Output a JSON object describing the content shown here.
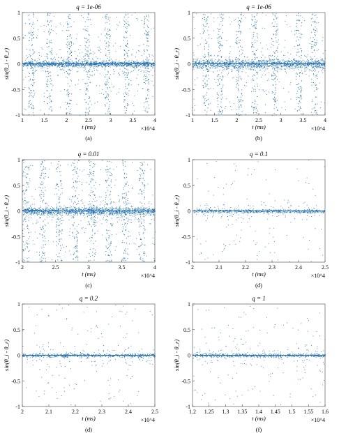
{
  "chart_data": [
    {
      "type": "scatter",
      "panel": "(a)",
      "title": "q = 1e-06",
      "xlabel": "t (ms)",
      "ylabel": "sin(θ_i - θ_r)",
      "x_multiplier": "×10^4",
      "xlim": [
        1,
        4
      ],
      "ylim": [
        -1,
        1
      ],
      "xticks": [
        1,
        1.5,
        2,
        2.5,
        3,
        3.5,
        4
      ],
      "xtick_labels": [
        "1",
        "1.5",
        "2",
        "2.5",
        "3",
        "3.5",
        "4"
      ],
      "yticks": [
        -1,
        -0.5,
        0,
        0.5,
        1
      ],
      "ytick_labels": [
        "-1",
        "-0.5",
        "0",
        "0.5",
        "1"
      ],
      "series": [
        {
          "color": "#1f6fb4"
        }
      ],
      "pattern": {
        "band": 0.08,
        "burst_x": [
          1.2,
          1.6,
          2.05,
          2.47,
          2.92,
          3.35,
          3.8
        ],
        "burst_width": 0.12
      }
    },
    {
      "type": "scatter",
      "panel": "(b)",
      "title": "q = 1e-06",
      "xlabel": "t (ms)",
      "ylabel": "sin(θ_i - θ_r)",
      "x_multiplier": "×10^4",
      "xlim": [
        1,
        4
      ],
      "ylim": [
        -1,
        1
      ],
      "xticks": [
        1,
        1.5,
        2,
        2.5,
        3,
        3.5,
        4
      ],
      "xtick_labels": [
        "1",
        "1.5",
        "2",
        "2.5",
        "3",
        "3.5",
        "4"
      ],
      "yticks": [
        -1,
        -0.5,
        0,
        0.5,
        1
      ],
      "ytick_labels": [
        "-1",
        "-0.5",
        "0",
        "0.5",
        "1"
      ],
      "series": [
        {
          "color": "#1f6fb4"
        }
      ],
      "pattern": {
        "band": 0.12,
        "burst_x": [
          1.3,
          1.62,
          2.05,
          2.4,
          2.85,
          3.4,
          3.75
        ],
        "burst_width": 0.14
      }
    },
    {
      "type": "scatter",
      "panel": "(c)",
      "title": "q = 0.01",
      "xlabel": "t (ms)",
      "ylabel": "sin(θ_i - θ_r)",
      "x_multiplier": "×10^4",
      "xlim": [
        2,
        4
      ],
      "ylim": [
        -1,
        1
      ],
      "xticks": [
        2,
        2.5,
        3,
        3.5,
        4
      ],
      "xtick_labels": [
        "2",
        "2.5",
        "3",
        "3.5",
        "4"
      ],
      "yticks": [
        -1,
        -0.5,
        0,
        0.5,
        1
      ],
      "ytick_labels": [
        "-1",
        "-0.5",
        "0",
        "0.5",
        "1"
      ],
      "series": [
        {
          "color": "#1f6fb4"
        }
      ],
      "pattern": {
        "band": 0.1,
        "burst_x": [
          2.05,
          2.3,
          2.55,
          2.8,
          3.05,
          3.3,
          3.55,
          3.8
        ],
        "burst_width": 0.1
      }
    },
    {
      "type": "scatter",
      "panel": "(d)",
      "title": "q = 0.1",
      "xlabel": "t (ms)",
      "ylabel": "sin(θ_i - θ_r)",
      "x_multiplier": "×10^4",
      "xlim": [
        2,
        2.5
      ],
      "ylim": [
        -1,
        1
      ],
      "xticks": [
        2,
        2.1,
        2.2,
        2.3,
        2.4,
        2.5
      ],
      "xtick_labels": [
        "2",
        "2.1",
        "2.2",
        "2.3",
        "2.4",
        "2.5"
      ],
      "yticks": [
        -1,
        -0.5,
        0,
        0.5,
        1
      ],
      "ytick_labels": [
        "-1",
        "-0.5",
        "0",
        "0.5",
        "1"
      ],
      "series": [
        {
          "color": "#1f6fb4"
        }
      ],
      "pattern": {
        "band": 0.05,
        "burst_x": [],
        "burst_width": 0
      }
    },
    {
      "type": "scatter",
      "panel": "(d)",
      "title": "q = 0.2",
      "xlabel": "t (ms)",
      "ylabel": "sin(θ_i - θ_r)",
      "x_multiplier": "×10^4",
      "xlim": [
        2,
        2.5
      ],
      "ylim": [
        -1,
        1
      ],
      "xticks": [
        2,
        2.1,
        2.2,
        2.3,
        2.4,
        2.5
      ],
      "xtick_labels": [
        "2",
        "2.1",
        "2.2",
        "2.3",
        "2.4",
        "2.5"
      ],
      "yticks": [
        -1,
        -0.5,
        0,
        0.5,
        1
      ],
      "ytick_labels": [
        "-1",
        "-0.5",
        "0",
        "0.5",
        "1"
      ],
      "series": [
        {
          "color": "#1f6fb4"
        }
      ],
      "pattern": {
        "band": 0.05,
        "burst_x": [],
        "burst_width": 0
      }
    },
    {
      "type": "scatter",
      "panel": "(f)",
      "title": "q = 1",
      "xlabel": "t (ms)",
      "ylabel": "sin(θ_i - θ_r)",
      "x_multiplier": "×10^4",
      "xlim": [
        1.2,
        1.6
      ],
      "ylim": [
        -1,
        1
      ],
      "xticks": [
        1.2,
        1.25,
        1.3,
        1.35,
        1.4,
        1.45,
        1.5,
        1.55,
        1.6
      ],
      "xtick_labels": [
        "1.2",
        "1.25",
        "1.3",
        "1.35",
        "1.4",
        "1.45",
        "1.5",
        "1.55",
        "1.6"
      ],
      "yticks": [
        -1,
        -0.5,
        0,
        0.5,
        1
      ],
      "ytick_labels": [
        "-1",
        "-0.5",
        "0",
        "0.5",
        "1"
      ],
      "series": [
        {
          "color": "#1f6fb4"
        }
      ],
      "pattern": {
        "band": 0.05,
        "burst_x": [],
        "burst_width": 0
      }
    }
  ]
}
